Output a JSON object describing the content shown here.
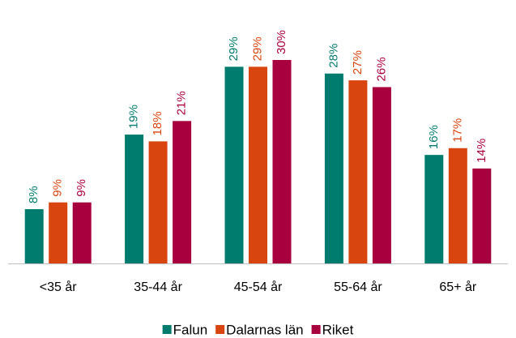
{
  "chart_data": {
    "type": "bar",
    "categories": [
      "<35 år",
      "35-44 år",
      "45-54 år",
      "55-64 år",
      "65+ år"
    ],
    "series": [
      {
        "name": "Falun",
        "color": "#007c6e",
        "values": [
          8,
          19,
          29,
          28,
          16
        ],
        "value_labels": [
          "8%",
          "19%",
          "29%",
          "28%",
          "16%"
        ]
      },
      {
        "name": "Dalarnas län",
        "color": "#d9450f",
        "values": [
          9,
          18,
          29,
          27,
          17
        ],
        "value_labels": [
          "9%",
          "18%",
          "29%",
          "27%",
          "17%"
        ]
      },
      {
        "name": "Riket",
        "color": "#a8003f",
        "values": [
          9,
          21,
          30,
          26,
          14
        ],
        "value_labels": [
          "9%",
          "21%",
          "30%",
          "26%",
          "14%"
        ]
      }
    ],
    "legend": "bottom"
  }
}
